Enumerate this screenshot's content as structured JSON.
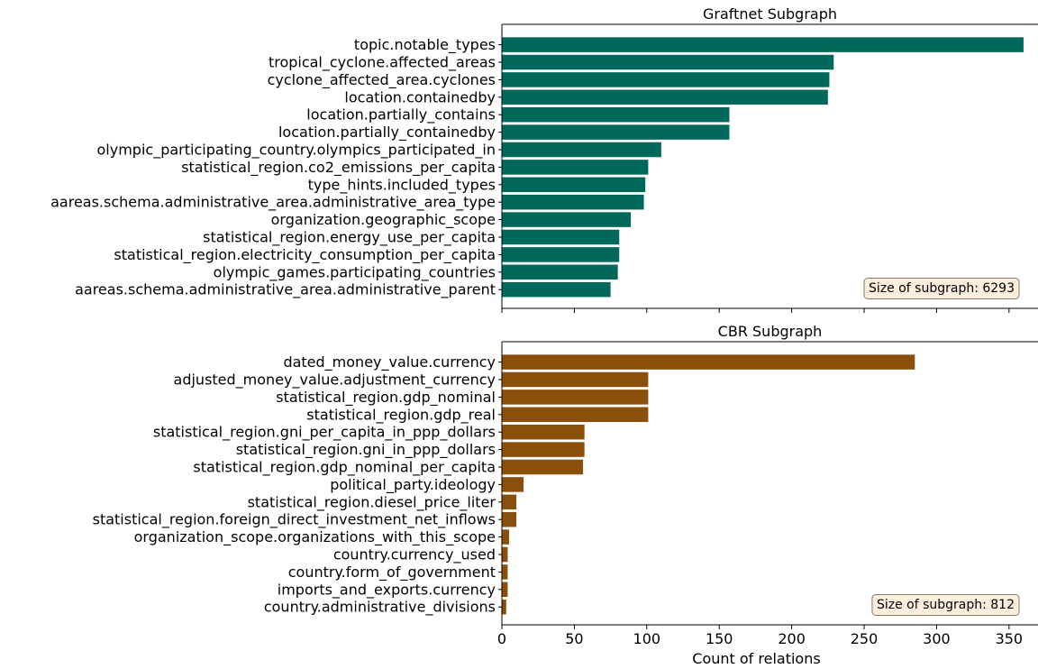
{
  "chart_data": [
    {
      "type": "bar",
      "orientation": "horizontal",
      "title": "Graftnet Subgraph",
      "categories": [
        "topic.notable_types",
        "tropical_cyclone.affected_areas",
        "cyclone_affected_area.cyclones",
        "location.containedby",
        "location.partially_contains",
        "location.partially_containedby",
        "olympic_participating_country.olympics_participated_in",
        "statistical_region.co2_emissions_per_capita",
        "type_hints.included_types",
        "aareas.schema.administrative_area.administrative_area_type",
        "organization.geographic_scope",
        "statistical_region.energy_use_per_capita",
        "statistical_region.electricity_consumption_per_capita",
        "olympic_games.participating_countries",
        "aareas.schema.administrative_area.administrative_parent"
      ],
      "values": [
        360,
        229,
        226,
        225,
        157,
        157,
        110,
        101,
        99,
        98,
        89,
        81,
        81,
        80,
        75
      ],
      "xlim": [
        0,
        370
      ],
      "annotation": "Size of subgraph: 6293",
      "bar_color": "#00695c",
      "grid": false,
      "show_x_tick_labels": false
    },
    {
      "type": "bar",
      "orientation": "horizontal",
      "title": "CBR Subgraph",
      "categories": [
        "dated_money_value.currency",
        "adjusted_money_value.adjustment_currency",
        "statistical_region.gdp_nominal",
        "statistical_region.gdp_real",
        "statistical_region.gni_per_capita_in_ppp_dollars",
        "statistical_region.gni_in_ppp_dollars",
        "statistical_region.gdp_nominal_per_capita",
        "political_party.ideology",
        "statistical_region.diesel_price_liter",
        "statistical_region.foreign_direct_investment_net_inflows",
        "organization_scope.organizations_with_this_scope",
        "country.currency_used",
        "country.form_of_government",
        "imports_and_exports.currency",
        "country.administrative_divisions"
      ],
      "values": [
        285,
        101,
        101,
        101,
        57,
        57,
        56,
        15,
        10,
        10,
        5,
        4,
        4,
        4,
        3
      ],
      "xlim": [
        0,
        370
      ],
      "xticks": [
        0,
        50,
        100,
        150,
        200,
        250,
        300,
        350
      ],
      "xlabel": "Count of relations",
      "annotation": "Size of subgraph: 812",
      "bar_color": "#8b4f0c",
      "grid": false,
      "show_x_tick_labels": true
    }
  ]
}
